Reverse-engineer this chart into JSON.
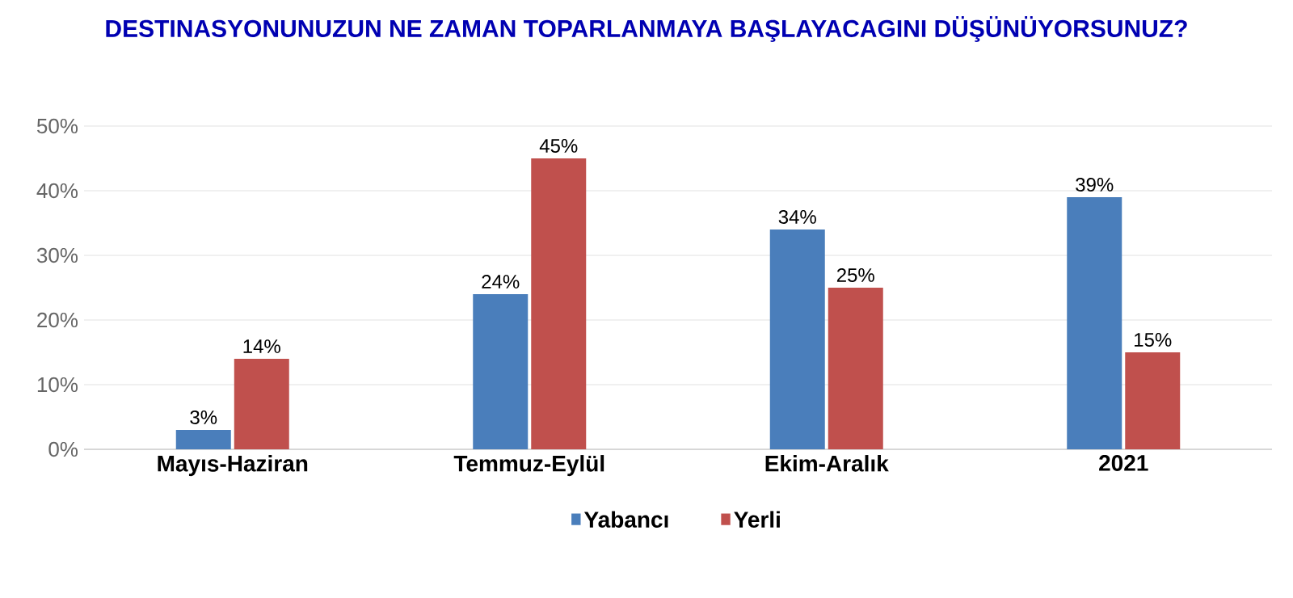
{
  "chart_data": {
    "type": "bar",
    "title": "DESTINASYONUNUZUN NE ZAMAN TOPARLANMAYA BAŞLAYACAGINI DÜŞÜNÜYORSUNUZ?",
    "categories": [
      "Mayıs-Haziran",
      "Temmuz-Eylül",
      "Ekim-Aralık",
      "2021"
    ],
    "series": [
      {
        "name": "Yabancı",
        "color": "#4a7ebb",
        "values": [
          3,
          24,
          34,
          39
        ],
        "value_labels": [
          "3%",
          "24%",
          "34%",
          "39%"
        ]
      },
      {
        "name": "Yerli",
        "color": "#c0504d",
        "values": [
          14,
          45,
          25,
          15
        ],
        "value_labels": [
          "14%",
          "45%",
          "25%",
          "15%"
        ]
      }
    ],
    "ylim": [
      0,
      50
    ],
    "yticks": [
      {
        "value": 0,
        "label": "0%"
      },
      {
        "value": 10,
        "label": "10%"
      },
      {
        "value": 20,
        "label": "20%"
      },
      {
        "value": 30,
        "label": "30%"
      },
      {
        "value": 40,
        "label": "40%"
      },
      {
        "value": 50,
        "label": "50%"
      }
    ],
    "grid": "y",
    "legend": "bottom"
  }
}
